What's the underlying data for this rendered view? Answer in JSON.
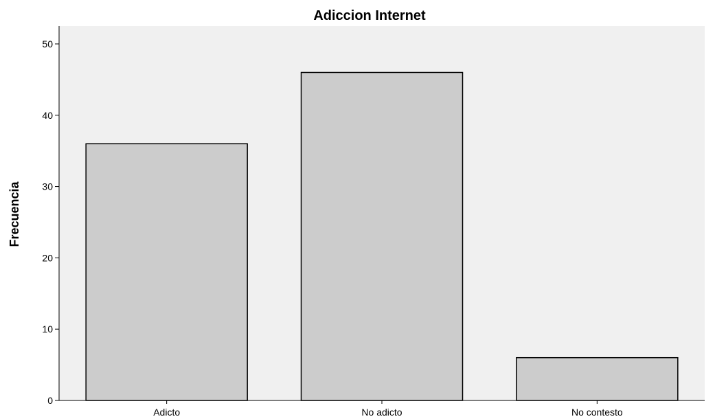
{
  "chart_data": {
    "type": "bar",
    "title": "Adiccion Internet",
    "xlabel": "",
    "ylabel": "Frecuencia",
    "categories": [
      "Adicto",
      "No adicto",
      "No contesto"
    ],
    "values": [
      36,
      46,
      6
    ],
    "ylim": [
      0,
      52.5
    ],
    "yticks": [
      0,
      10,
      20,
      30,
      40,
      50
    ],
    "grid": false,
    "colors": {
      "plot_background": "#f0f0f0",
      "bar_fill": "#cccccc",
      "bar_stroke": "#000000"
    }
  }
}
